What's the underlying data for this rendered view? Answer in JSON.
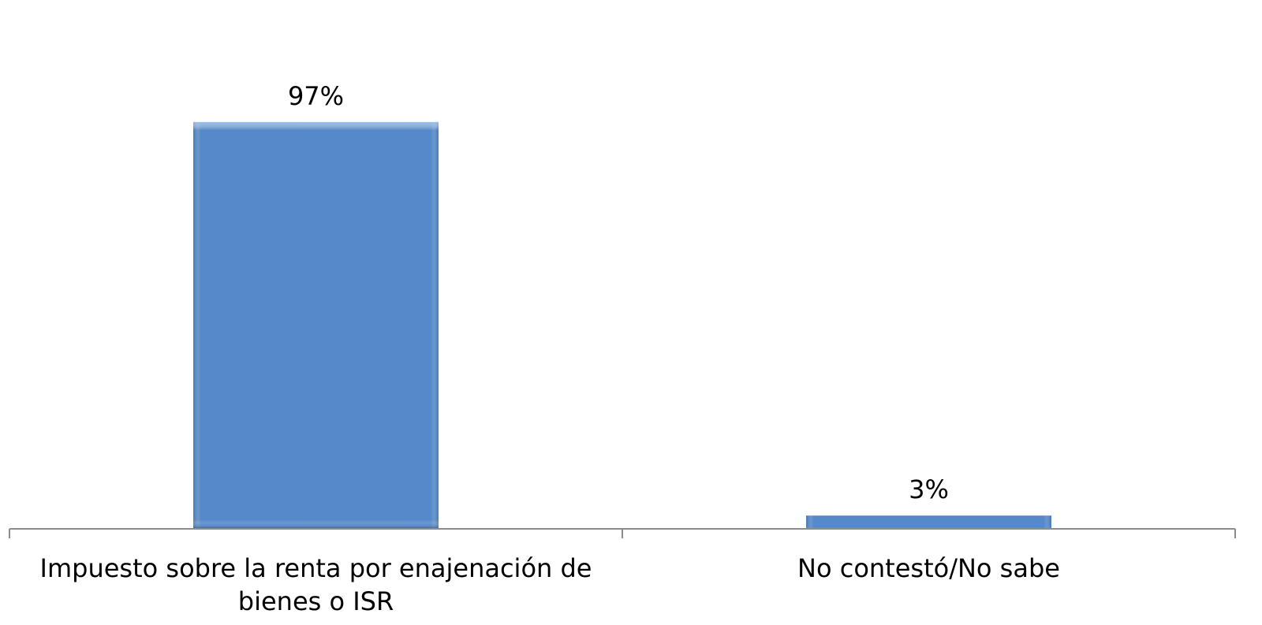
{
  "chart_data": {
    "type": "bar",
    "categories": [
      "Impuesto sobre la renta por enajenación de bienes o ISR",
      "No contestó/No sabe"
    ],
    "values": [
      97,
      3
    ],
    "value_labels": [
      "97%",
      "3%"
    ],
    "color": "#5589c9",
    "ylim": [
      0,
      100
    ]
  }
}
